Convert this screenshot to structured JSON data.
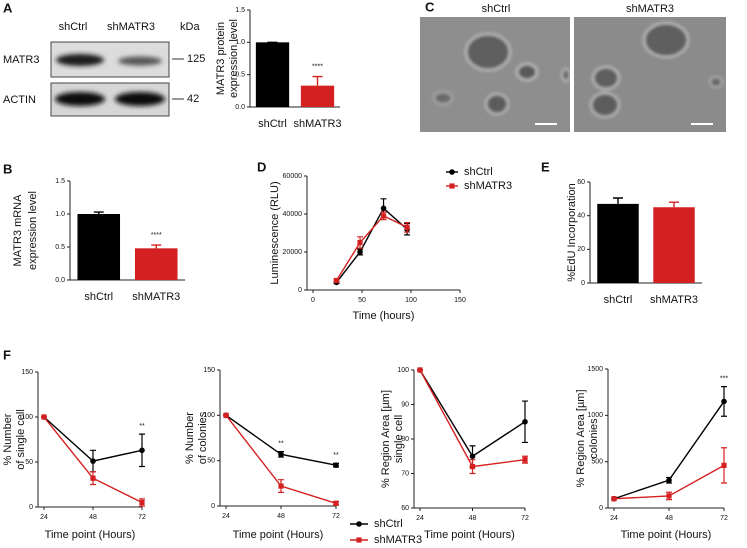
{
  "panel_labels": [
    "A",
    "B",
    "C",
    "D",
    "E",
    "F"
  ],
  "blot": {
    "lanes": [
      "shCtrl",
      "shMATR3"
    ],
    "unit": "kDa",
    "rows": [
      {
        "label": "MATR3",
        "marker": 125
      },
      {
        "label": "ACTIN",
        "marker": 42
      }
    ]
  },
  "micrographs": {
    "labels": [
      "shCtrl",
      "shMATR3"
    ]
  },
  "chart_data": [
    {
      "type": "bar",
      "ylabel": [
        "MATR3 protein",
        "expression level"
      ],
      "categories": [
        "shCtrl",
        "shMATR3"
      ],
      "values": [
        1.0,
        0.33
      ],
      "errors": [
        0,
        0.14
      ],
      "colors": [
        "#000000",
        "#d42020"
      ],
      "ylim": [
        0,
        1.5
      ],
      "yticks": [
        {
          "value": 0,
          "label": "0.0"
        },
        {
          "value": 0.5,
          "label": "0.5"
        },
        {
          "value": 1,
          "label": "1.0"
        },
        {
          "value": 1.5,
          "label": "1.5"
        }
      ],
      "annotations": [
        {
          "x": "shMATR3",
          "text": "****"
        }
      ]
    },
    {
      "type": "bar",
      "ylabel": [
        "MATR3 mRNA",
        "expression level"
      ],
      "categories": [
        "shCtrl",
        "shMATR3"
      ],
      "values": [
        1.0,
        0.48
      ],
      "errors": [
        0.03,
        0.05
      ],
      "colors": [
        "#000000",
        "#d42020"
      ],
      "ylim": [
        0,
        1.5
      ],
      "yticks": [
        {
          "value": 0,
          "label": "0.0"
        },
        {
          "value": 0.5,
          "label": "0.5"
        },
        {
          "value": 1,
          "label": "1.0"
        },
        {
          "value": 1.5,
          "label": "1.5"
        }
      ],
      "annotations": [
        {
          "x": "shMATR3",
          "text": "****"
        }
      ]
    },
    {
      "type": "line",
      "xlabel": "Time (hours)",
      "ylabel": [
        "Luminescence (RLU)"
      ],
      "x": [
        24,
        48,
        72,
        96
      ],
      "series": [
        {
          "name": "shCtrl",
          "color": "#000000",
          "marker": "circle",
          "values": [
            4000,
            20000,
            43000,
            32000
          ],
          "errors": [
            500,
            1500,
            5000,
            3000
          ]
        },
        {
          "name": "shMATR3",
          "color": "#d42020",
          "marker": "square",
          "values": [
            5000,
            25000,
            39000,
            33000
          ],
          "errors": [
            800,
            3000,
            2000,
            2500
          ]
        }
      ],
      "xlim": [
        0,
        150
      ],
      "xticks": [
        0,
        50,
        100,
        150
      ],
      "ylim": [
        0,
        60000
      ],
      "yticks": [
        0,
        20000,
        40000,
        60000
      ],
      "legend": "top-right"
    },
    {
      "type": "bar",
      "ylabel": [
        "%EdU Incorporation"
      ],
      "categories": [
        "shCtrl",
        "shMATR3"
      ],
      "values": [
        47,
        45
      ],
      "errors": [
        3.5,
        3
      ],
      "colors": [
        "#000000",
        "#d42020"
      ],
      "ylim": [
        0,
        60
      ],
      "yticks": [
        0,
        20,
        40,
        60
      ]
    },
    {
      "type": "line",
      "xlabel": "Time point (Hours)",
      "ylabel": [
        "% Number",
        "of single cell"
      ],
      "x": [
        24,
        48,
        72
      ],
      "series": [
        {
          "name": "shCtrl",
          "color": "#000000",
          "marker": "circle",
          "values": [
            100,
            51,
            63
          ],
          "errors": [
            0,
            12,
            18
          ]
        },
        {
          "name": "shMATR3",
          "color": "#d42020",
          "marker": "square",
          "values": [
            100,
            32,
            5
          ],
          "errors": [
            0,
            7,
            4
          ]
        }
      ],
      "xlim": [
        24,
        72
      ],
      "xticks": [
        24,
        48,
        72
      ],
      "ylim": [
        0,
        150
      ],
      "yticks": [
        0,
        50,
        100,
        150
      ],
      "annotations": [
        {
          "x": 72,
          "text": "**"
        }
      ]
    },
    {
      "type": "line",
      "xlabel": "Time point (Hours)",
      "ylabel": [
        "% Number",
        "of colonies"
      ],
      "x": [
        24,
        48,
        72
      ],
      "series": [
        {
          "name": "shCtrl",
          "color": "#000000",
          "marker": "circle",
          "values": [
            100,
            57,
            45
          ],
          "errors": [
            0,
            3,
            2
          ]
        },
        {
          "name": "shMATR3",
          "color": "#d42020",
          "marker": "square",
          "values": [
            100,
            22,
            3
          ],
          "errors": [
            0,
            7,
            2
          ]
        }
      ],
      "xlim": [
        24,
        72
      ],
      "xticks": [
        24,
        48,
        72
      ],
      "ylim": [
        0,
        150
      ],
      "yticks": [
        0,
        50,
        100,
        150
      ],
      "annotations": [
        {
          "x": 48,
          "text": "**"
        },
        {
          "x": 72,
          "text": "**"
        }
      ],
      "legend": "bottom"
    },
    {
      "type": "line",
      "xlabel": "Time point (Hours)",
      "ylabel": [
        "% Region Area [µm]",
        "single cell"
      ],
      "x": [
        24,
        48,
        72
      ],
      "series": [
        {
          "name": "shCtrl",
          "color": "#000000",
          "marker": "circle",
          "values": [
            100,
            75,
            85
          ],
          "errors": [
            0,
            3,
            6
          ]
        },
        {
          "name": "shMATR3",
          "color": "#d42020",
          "marker": "square",
          "values": [
            100,
            72,
            74
          ],
          "errors": [
            0,
            2,
            1
          ]
        }
      ],
      "xlim": [
        24,
        72
      ],
      "xticks": [
        24,
        48,
        72
      ],
      "ylim": [
        60,
        100
      ],
      "yticks": [
        60,
        70,
        80,
        90,
        100
      ]
    },
    {
      "type": "line",
      "xlabel": "Time point (Hours)",
      "ylabel": [
        "% Region Area [µm]",
        "colonies"
      ],
      "x": [
        24,
        48,
        72
      ],
      "series": [
        {
          "name": "shCtrl",
          "color": "#000000",
          "marker": "circle",
          "values": [
            100,
            300,
            1150
          ],
          "errors": [
            0,
            30,
            160
          ]
        },
        {
          "name": "shMATR3",
          "color": "#d42020",
          "marker": "square",
          "values": [
            100,
            130,
            460
          ],
          "errors": [
            0,
            40,
            190
          ]
        }
      ],
      "xlim": [
        24,
        72
      ],
      "xticks": [
        24,
        48,
        72
      ],
      "ylim": [
        0,
        1500
      ],
      "yticks": [
        0,
        500,
        1000,
        1500
      ],
      "annotations": [
        {
          "x": 72,
          "text": "***"
        }
      ]
    }
  ]
}
